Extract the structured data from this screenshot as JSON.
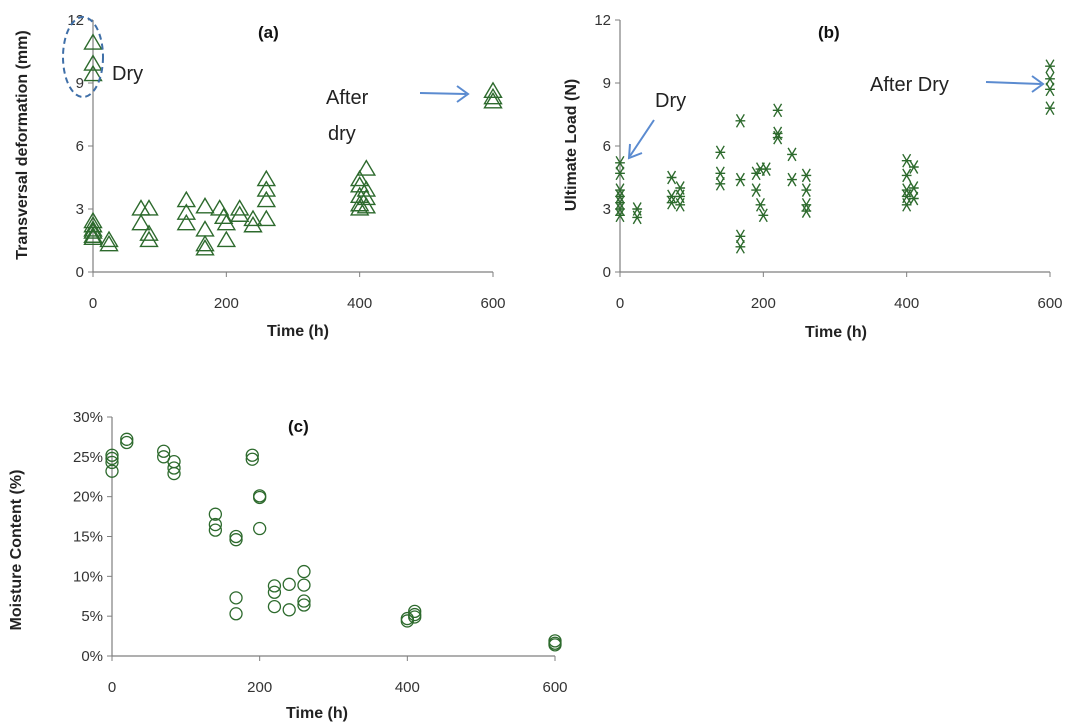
{
  "colors": {
    "marker": "#2d6a2d",
    "arrow": "#5b8bd0",
    "axis": "#7f7f7f",
    "ellipse": "#3f6fa8"
  },
  "chart_data": [
    {
      "panel": "(a)",
      "type": "scatter",
      "marker": "triangle",
      "xlabel": "Time (h)",
      "ylabel": "Transversal deformation (mm)",
      "xlim": [
        0,
        600
      ],
      "ylim": [
        0,
        12
      ],
      "xticks": [
        "0",
        "200",
        "400",
        "600"
      ],
      "yticks": [
        "0",
        "3",
        "6",
        "9",
        "12"
      ],
      "annotations": [
        "Dry",
        "After dry"
      ],
      "points": [
        [
          0,
          10.9
        ],
        [
          0,
          9.9
        ],
        [
          0,
          9.4
        ],
        [
          0,
          2.4
        ],
        [
          0,
          2.2
        ],
        [
          0,
          2.0
        ],
        [
          0,
          1.9
        ],
        [
          0,
          1.7
        ],
        [
          0,
          1.6
        ],
        [
          24,
          1.5
        ],
        [
          24,
          1.3
        ],
        [
          72,
          3.0
        ],
        [
          72,
          2.3
        ],
        [
          84,
          3.0
        ],
        [
          84,
          1.8
        ],
        [
          84,
          1.5
        ],
        [
          140,
          3.4
        ],
        [
          140,
          2.8
        ],
        [
          140,
          2.3
        ],
        [
          168,
          3.1
        ],
        [
          168,
          2.0
        ],
        [
          168,
          1.3
        ],
        [
          168,
          1.1
        ],
        [
          190,
          3.0
        ],
        [
          196,
          2.6
        ],
        [
          200,
          2.3
        ],
        [
          200,
          1.5
        ],
        [
          220,
          3.0
        ],
        [
          220,
          2.7
        ],
        [
          240,
          2.5
        ],
        [
          240,
          2.2
        ],
        [
          260,
          4.4
        ],
        [
          260,
          3.9
        ],
        [
          260,
          3.4
        ],
        [
          260,
          2.5
        ],
        [
          400,
          4.4
        ],
        [
          400,
          4.1
        ],
        [
          400,
          3.6
        ],
        [
          400,
          3.2
        ],
        [
          400,
          3.0
        ],
        [
          410,
          4.9
        ],
        [
          410,
          3.9
        ],
        [
          410,
          3.5
        ],
        [
          410,
          3.1
        ],
        [
          600,
          8.6
        ],
        [
          600,
          8.3
        ],
        [
          600,
          8.1
        ]
      ]
    },
    {
      "panel": "(b)",
      "type": "scatter",
      "marker": "asterisk",
      "xlabel": "Time (h)",
      "ylabel": "Ultimate Load (N)",
      "xlim": [
        0,
        600
      ],
      "ylim": [
        0,
        12
      ],
      "xticks": [
        "0",
        "200",
        "400",
        "600"
      ],
      "yticks": [
        "0",
        "3",
        "6",
        "9",
        "12"
      ],
      "annotations": [
        "Dry",
        "After Dry"
      ],
      "points": [
        [
          0,
          5.2
        ],
        [
          0,
          4.7
        ],
        [
          0,
          3.9
        ],
        [
          0,
          3.6
        ],
        [
          0,
          3.3
        ],
        [
          0,
          3.0
        ],
        [
          0,
          2.7
        ],
        [
          24,
          3.0
        ],
        [
          24,
          2.6
        ],
        [
          72,
          4.5
        ],
        [
          72,
          3.6
        ],
        [
          72,
          3.3
        ],
        [
          84,
          4.0
        ],
        [
          84,
          3.6
        ],
        [
          84,
          3.2
        ],
        [
          140,
          5.7
        ],
        [
          140,
          4.7
        ],
        [
          140,
          4.2
        ],
        [
          168,
          7.2
        ],
        [
          168,
          4.4
        ],
        [
          168,
          1.7
        ],
        [
          168,
          1.2
        ],
        [
          190,
          4.7
        ],
        [
          190,
          3.9
        ],
        [
          196,
          3.2
        ],
        [
          196,
          4.9
        ],
        [
          200,
          2.7
        ],
        [
          204,
          4.9
        ],
        [
          220,
          7.7
        ],
        [
          220,
          6.6
        ],
        [
          220,
          6.4
        ],
        [
          240,
          5.6
        ],
        [
          240,
          4.4
        ],
        [
          260,
          4.6
        ],
        [
          260,
          3.9
        ],
        [
          260,
          3.2
        ],
        [
          260,
          2.9
        ],
        [
          400,
          5.3
        ],
        [
          400,
          4.6
        ],
        [
          400,
          3.9
        ],
        [
          400,
          3.6
        ],
        [
          400,
          3.2
        ],
        [
          410,
          5.0
        ],
        [
          410,
          4.0
        ],
        [
          410,
          3.5
        ],
        [
          600,
          9.8
        ],
        [
          600,
          9.2
        ],
        [
          600,
          8.7
        ],
        [
          600,
          7.8
        ]
      ]
    },
    {
      "panel": "(c)",
      "type": "scatter",
      "marker": "circle",
      "xlabel": "Time (h)",
      "ylabel": "Moisture Content (%)",
      "xlim": [
        0,
        600
      ],
      "ylim": [
        0,
        30
      ],
      "xticks": [
        "0",
        "200",
        "400",
        "600"
      ],
      "yticks": [
        "0%",
        "5%",
        "10%",
        "15%",
        "20%",
        "25%",
        "30%"
      ],
      "points": [
        [
          0,
          25.2
        ],
        [
          0,
          24.8
        ],
        [
          0,
          24.3
        ],
        [
          0,
          23.2
        ],
        [
          20,
          27.2
        ],
        [
          20,
          26.8
        ],
        [
          70,
          25.7
        ],
        [
          70,
          25.0
        ],
        [
          84,
          24.4
        ],
        [
          84,
          23.6
        ],
        [
          84,
          22.9
        ],
        [
          140,
          17.8
        ],
        [
          140,
          16.5
        ],
        [
          140,
          15.8
        ],
        [
          168,
          15.0
        ],
        [
          168,
          14.6
        ],
        [
          168,
          7.3
        ],
        [
          168,
          5.3
        ],
        [
          190,
          25.2
        ],
        [
          190,
          24.7
        ],
        [
          200,
          20.1
        ],
        [
          200,
          19.9
        ],
        [
          200,
          16.0
        ],
        [
          220,
          8.8
        ],
        [
          220,
          8.0
        ],
        [
          220,
          6.2
        ],
        [
          240,
          9.0
        ],
        [
          240,
          5.8
        ],
        [
          260,
          10.6
        ],
        [
          260,
          8.9
        ],
        [
          260,
          6.9
        ],
        [
          260,
          6.4
        ],
        [
          400,
          4.7
        ],
        [
          400,
          4.4
        ],
        [
          410,
          5.6
        ],
        [
          410,
          5.2
        ],
        [
          410,
          4.9
        ],
        [
          600,
          1.9
        ],
        [
          600,
          1.6
        ],
        [
          600,
          1.4
        ]
      ]
    }
  ]
}
